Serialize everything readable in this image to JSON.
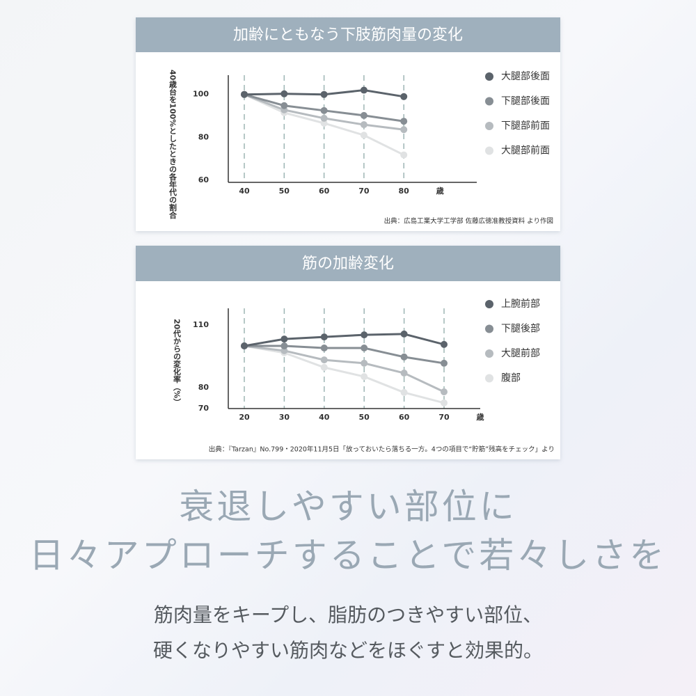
{
  "chart_data": [
    {
      "type": "line",
      "title": "加齢にともなう下肢筋肉量の変化",
      "y_label": "40歳台を100%としたときの各年代の割合",
      "x_label": "歳",
      "categories": [
        "40",
        "50",
        "60",
        "70",
        "80"
      ],
      "ylim": [
        59,
        109
      ],
      "yticks": [
        60,
        80,
        100
      ],
      "series": [
        {
          "name": "大腿部後面",
          "color": "#5b636b",
          "values": [
            100,
            100.3,
            100,
            102,
            99
          ]
        },
        {
          "name": "下腿部後面",
          "color": "#878e94",
          "values": [
            100,
            94.8,
            92.5,
            90.2,
            87.5
          ]
        },
        {
          "name": "下腿部前面",
          "color": "#b6bbbf",
          "values": [
            100,
            92.8,
            88.9,
            85.9,
            83.6
          ]
        },
        {
          "name": "大腿部前面",
          "color": "#e0e2e3",
          "values": [
            100,
            91.5,
            86.6,
            81,
            71.8
          ]
        }
      ],
      "source": "出典：広島工業大学工学部 佐藤広徳准教授資料 より作図"
    },
    {
      "type": "line",
      "title": "筋の加齢変化",
      "y_label": "20代からの変化率（%）",
      "x_label": "歳",
      "categories": [
        "20",
        "30",
        "40",
        "50",
        "60",
        "70"
      ],
      "ylim": [
        70,
        118
      ],
      "yticks": [
        70,
        80,
        110
      ],
      "series": [
        {
          "name": "上腕前部",
          "color": "#5b636b",
          "values": [
            100,
            103.3,
            104.3,
            105.3,
            105.7,
            100.7
          ]
        },
        {
          "name": "下腿後部",
          "color": "#878e94",
          "values": [
            100,
            100,
            99,
            99,
            94.7,
            91.7
          ]
        },
        {
          "name": "大腿前部",
          "color": "#b6bbbf",
          "values": [
            100,
            97.7,
            93.3,
            91.7,
            87,
            78
          ]
        },
        {
          "name": "腹部",
          "color": "#e0e2e3",
          "values": [
            100,
            96.7,
            89.7,
            85.3,
            77.7,
            72.7
          ]
        }
      ],
      "source": "出典：『Tarzan』No.799・2020年11月5日「放っておいたら落ちる一方。4つの項目で“貯筋”残高をチェック」より"
    }
  ],
  "headline": [
    "衰退しやすい部位に",
    "日々アプローチすることで若々しさを"
  ],
  "body": [
    "筋肉量をキープし、脂肪のつきやすい部位、",
    "硬くなりやすい筋肉などをほぐすと効果的。"
  ]
}
